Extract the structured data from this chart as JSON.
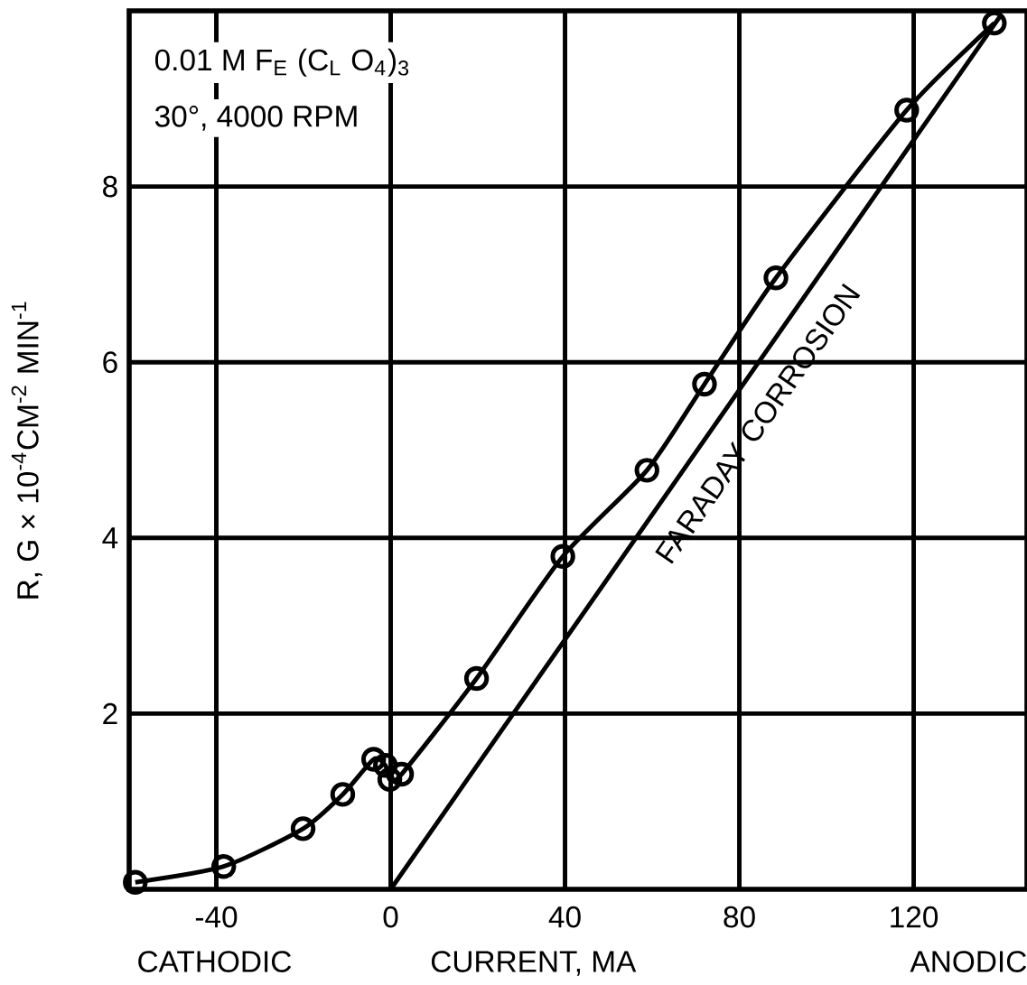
{
  "chart_data": {
    "type": "line",
    "xlabel": "CURRENT, MA",
    "ylabel": "R, G × 10$^{-4}$CM$^{-2}$ MIN$^{-1}$",
    "annotations": [
      "0.01 M F$_{E}$ (C$_{L}$ O$_{4}$)$_{3}$",
      "30°, 4000 RPM",
      "CATHODIC",
      "ANODIC",
      "FARADAY CORROSION"
    ],
    "series": [
      {
        "color": "#000000",
        "marker": "circle",
        "x": [
          -58.6,
          -38.3,
          -20.1,
          -11.0,
          -3.9,
          -1.2,
          -0.2,
          2.5,
          19.7,
          39.5,
          58.8,
          72.0,
          88.4,
          118.4,
          138.5
        ],
        "values": [
          0.08,
          0.26,
          0.69,
          1.08,
          1.48,
          1.41,
          1.25,
          1.31,
          2.4,
          3.79,
          4.77,
          5.75,
          6.96,
          8.87,
          9.86
        ]
      },
      {
        "color": "#000000",
        "marker": "none",
        "x": [
          0,
          140
        ],
        "values": [
          0,
          9.95
        ]
      }
    ],
    "xlim": [
      -60,
      146
    ],
    "ylim": [
      0,
      10
    ],
    "xticks": [
      -40,
      0,
      40,
      80,
      120
    ],
    "yticks": [
      2,
      4,
      6,
      8
    ],
    "grid": true
  }
}
